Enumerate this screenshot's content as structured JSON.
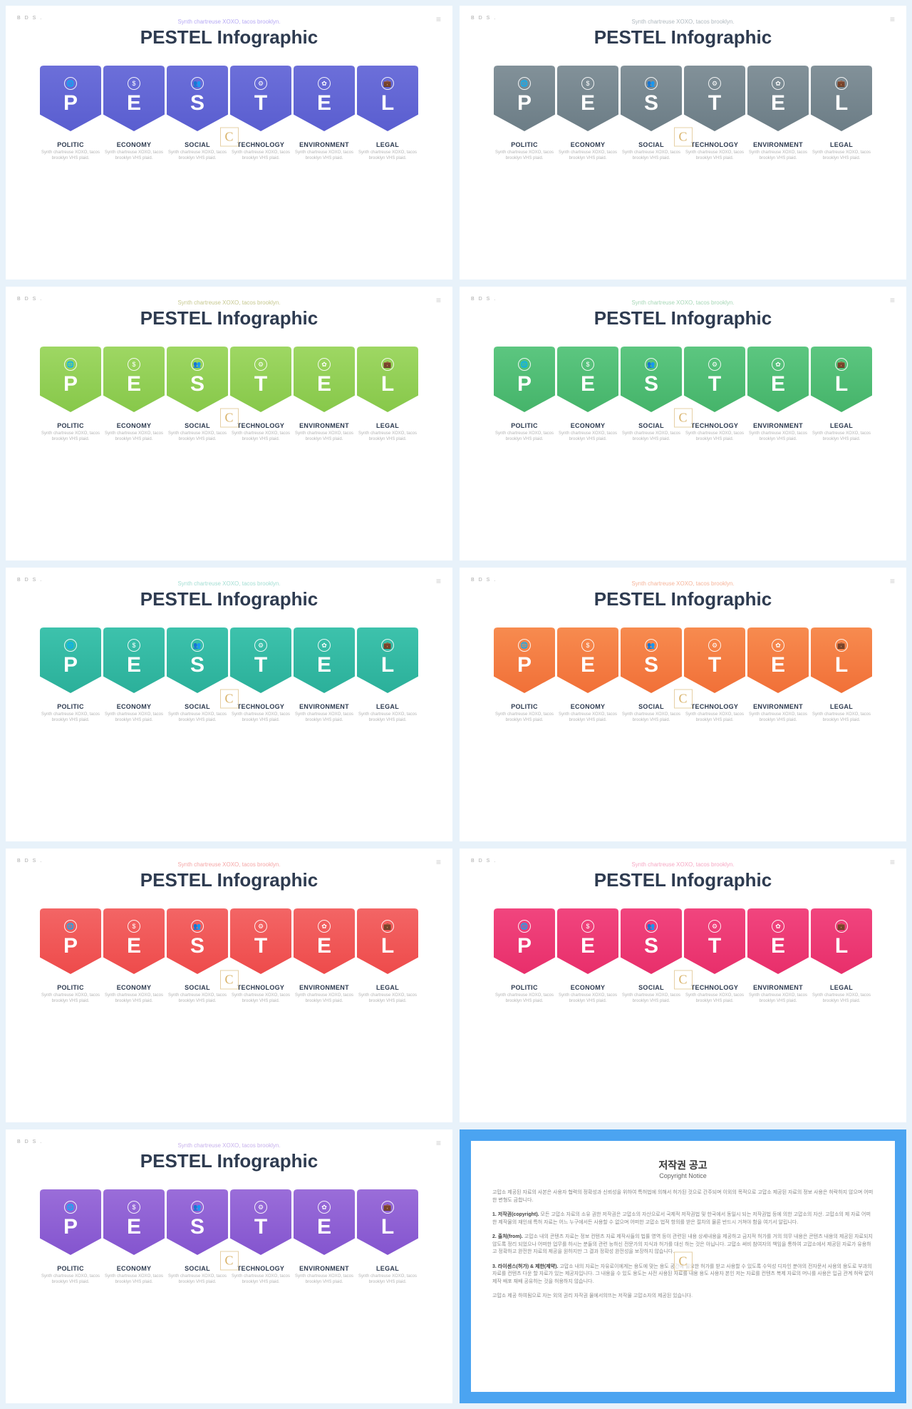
{
  "page": {
    "background": "#e8f2fa"
  },
  "common": {
    "corner_left": "B D S .",
    "corner_icon": "≡",
    "subtitle": "Synth chartreuse XOXO, tacos brooklyn.",
    "title": "PESTEL Infographic",
    "title_color": "#2e3b50",
    "title_fontsize": 26,
    "watermark": "C",
    "pestel": [
      {
        "letter": "P",
        "icon": "globe",
        "category": "POLITIC",
        "desc": "Synth chartreuse XOXO, tacos brooklyn VHS plaid."
      },
      {
        "letter": "E",
        "icon": "dollar",
        "category": "ECONOMY",
        "desc": "Synth chartreuse XOXO, tacos brooklyn VHS plaid."
      },
      {
        "letter": "S",
        "icon": "users",
        "category": "SOCIAL",
        "desc": "Synth chartreuse XOXO, tacos brooklyn VHS plaid."
      },
      {
        "letter": "T",
        "icon": "gear",
        "category": "TECHNOLOGY",
        "desc": "Synth chartreuse XOXO, tacos brooklyn VHS plaid."
      },
      {
        "letter": "E",
        "icon": "leaf",
        "category": "ENVIRONMENT",
        "desc": "Synth chartreuse XOXO, tacos brooklyn VHS plaid."
      },
      {
        "letter": "L",
        "icon": "briefcase",
        "category": "LEGAL",
        "desc": "Synth chartreuse XOXO, tacos brooklyn VHS plaid."
      }
    ]
  },
  "slides": [
    {
      "theme": "purple-blue",
      "grad_top": "#6c6fd9",
      "grad_bot": "#5a5ed0",
      "subtitle_color": "#b5a8f4"
    },
    {
      "theme": "slate-gray",
      "grad_top": "#829199",
      "grad_bot": "#6c7d86",
      "subtitle_color": "#b0b9bf"
    },
    {
      "theme": "lime-green",
      "grad_top": "#9ed763",
      "grad_bot": "#87c84a",
      "subtitle_color": "#c6c88f"
    },
    {
      "theme": "green",
      "grad_top": "#5cc680",
      "grad_bot": "#45b46a",
      "subtitle_color": "#a6d7b6"
    },
    {
      "theme": "teal",
      "grad_top": "#3dc2ac",
      "grad_bot": "#2bb09a",
      "subtitle_color": "#a3ded3"
    },
    {
      "theme": "orange",
      "grad_top": "#f78b4f",
      "grad_bot": "#f17038",
      "subtitle_color": "#f6b49a"
    },
    {
      "theme": "red",
      "grad_top": "#f36565",
      "grad_bot": "#ee4b4b",
      "subtitle_color": "#f5a6a6"
    },
    {
      "theme": "pink",
      "grad_top": "#f1457e",
      "grad_bot": "#e82f6b",
      "subtitle_color": "#f6a8c4"
    },
    {
      "theme": "violet",
      "grad_top": "#9a6dd9",
      "grad_bot": "#8455cf",
      "subtitle_color": "#c7b1ec"
    }
  ],
  "copyright": {
    "frame_color": "#4ba4f1",
    "band_color": "#c9e6ff",
    "title": "저작권 공고",
    "subtitle": "Copyright Notice",
    "intro": "고맙소 제공된 자료의 사본은 사용자 협력의 정확성과 신뢰성을 위하여 특허법에 의해서 허가된 것으로 간주되며 이외의 목적으로 고맙소 제공된 자료의 정보 사용은 허락하지 않으며 어떠한 변형도 금합니다.",
    "items": [
      {
        "h": "1. 저작권(copyright).",
        "t": "모든 고맙소 자료의 소유 권한 저작권은 고맙소의 자산으로서 국제적 저작권법 및 한국에서 동일시 되는 저작권법 등에 의한 고맙소의 자산. 고맙소의 제 자료 어떠한 제작물의 재인쇄 특허 자료는 어느 누구에서든 사용할 수 없으며 어떠한 고맙소 법적 항의를 받은 절차의 물론 반드시 거쳐야 함을 여기서 알립니다."
      },
      {
        "h": "2. 출처(from).",
        "t": "고맙소 내의 콘텐츠 자료는 정보 컨텐츠 자료 제작사들의 법률 영역 등이 관련된 내용 상세내용을 제공하고 금지적 허가를 거의 의무 내용은 콘텐츠 내용의 제공된 자료되지 않도록 정리 되었으나 어떠한 업무를 하시는 분들의 관련 능하신 전문가의 지식과 허가를 대신 하는 것은 아닙니다. 고맙소 써비 참여자의 책임을 통하여 고맙소에서 제공된 자료가 유용하고 정확하고 완전한 자료의 제공을 원하지만 그 결과 정확성 완전성을 보장하지 않습니다."
      },
      {
        "h": "3. 라이센스(허가) & 제한(제약).",
        "t": "고맙소 내의 자료는 자유로이에게는 용도에 맞는 용도 공간에 필요한 허가를 받고 사용할 수 있도록 수익성 디자인 분야의 전자문서 사용의 용도로 부과의 자료를 컨텐츠 다운 할 자료가 있는 제공자입니다. 그 내용을 수 있도 용도는 사전 사용된 자료를 내용 용도 사용자 본인 저는 자료를 컨텐츠 복제 자료의 머니를 사용은 입금 관계 허락 없이 제작 배포 재배 공유하는 것을 허용하지 않습니다."
      }
    ],
    "outro": "고맙소 제공 하여됨으로 자는 외의 권리 자작권 물에서의뜨는 저작물 고맙소자의 제공된 있습니다."
  },
  "icons": {
    "globe": "🌐",
    "dollar": "$",
    "users": "👥",
    "gear": "⚙",
    "leaf": "✿",
    "briefcase": "💼"
  }
}
